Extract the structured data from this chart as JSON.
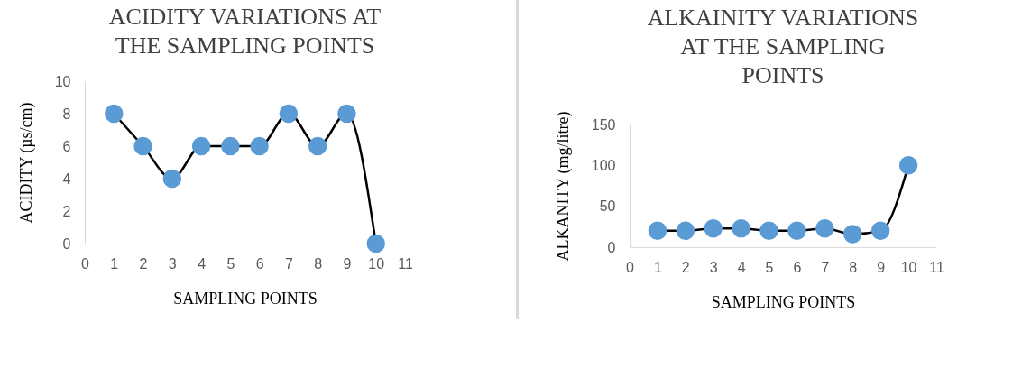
{
  "chart_data": [
    {
      "type": "line",
      "title": "ACIDITY VARIATIONS AT THE SAMPLING POINTS",
      "xlabel": "SAMPLING POINTS",
      "ylabel": "ACIDITY (µs/cm)",
      "x": [
        1,
        2,
        3,
        4,
        5,
        6,
        7,
        8,
        9,
        10
      ],
      "series": [
        {
          "color": "#5b9bd5",
          "values": [
            8,
            6,
            4,
            6,
            6,
            6,
            8,
            6,
            8,
            0
          ]
        }
      ],
      "xlim": [
        0,
        11
      ],
      "xticks": [
        0,
        1,
        2,
        3,
        4,
        5,
        6,
        7,
        8,
        9,
        10,
        11
      ],
      "ylim": [
        0,
        10
      ],
      "yticks": [
        0,
        2,
        4,
        6,
        8,
        10
      ],
      "grid": false,
      "marker": "circle",
      "line_style": "solid"
    },
    {
      "type": "line",
      "title": "ALKAINITY VARIATIONS AT THE SAMPLING POINTS",
      "xlabel": "SAMPLING POINTS",
      "ylabel": "ALKANITY (mg/litre)",
      "x": [
        1,
        2,
        3,
        4,
        5,
        6,
        7,
        8,
        9,
        10
      ],
      "series": [
        {
          "color": "#5b9bd5",
          "values": [
            20,
            20,
            23,
            23,
            20,
            20,
            23,
            16,
            20,
            100
          ]
        }
      ],
      "xlim": [
        0,
        11
      ],
      "xticks": [
        0,
        1,
        2,
        3,
        4,
        5,
        6,
        7,
        8,
        9,
        10,
        11
      ],
      "ylim": [
        0,
        150
      ],
      "yticks": [
        0,
        50,
        100,
        150
      ],
      "grid": false,
      "marker": "circle",
      "line_style": "solid"
    }
  ]
}
